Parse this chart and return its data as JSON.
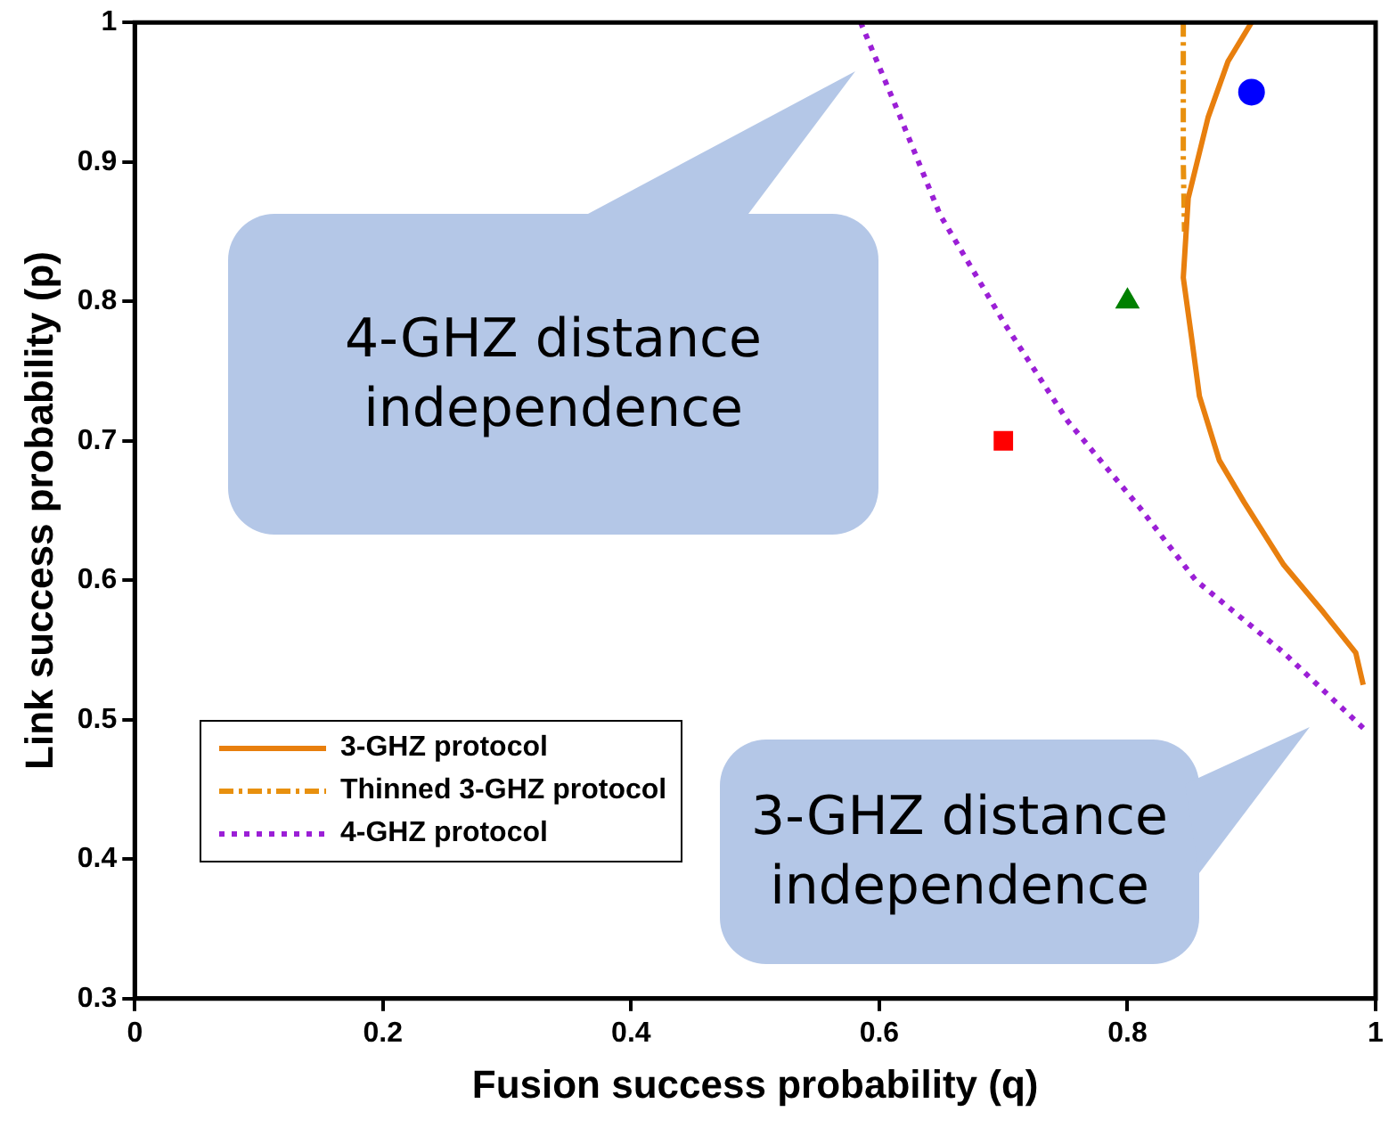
{
  "chart_data": {
    "type": "line",
    "xlabel": "Fusion success probability (q)",
    "ylabel": "Link success probability (p)",
    "xlim": [
      0,
      1
    ],
    "ylim": [
      0.3,
      1
    ],
    "xticks": [
      0,
      0.2,
      0.4,
      0.6,
      0.8,
      1
    ],
    "yticks": [
      0.3,
      0.4,
      0.5,
      0.6,
      0.7,
      0.8,
      0.9,
      1
    ],
    "legend": "bottom left",
    "annotations": [
      "4-GHZ distance independence",
      "3-GHZ distance independence"
    ],
    "series": [
      {
        "name": "3-GHZ protocol",
        "type": "line",
        "color": "#e87f0e",
        "line_style": "solid",
        "marker": "none",
        "x": [
          0.9,
          0.881,
          0.865,
          0.849,
          0.845,
          0.852,
          0.858,
          0.874,
          0.894,
          0.926,
          0.958,
          0.984,
          0.99
        ],
        "values": [
          1,
          0.972,
          0.932,
          0.874,
          0.817,
          0.772,
          0.732,
          0.686,
          0.656,
          0.611,
          0.577,
          0.548,
          0.525
        ]
      },
      {
        "name": "Thinned 3-GHZ protocol",
        "type": "line",
        "color": "#e8900e",
        "line_style": "dashdot",
        "marker": "none",
        "x": [
          0.845,
          0.845,
          0.846
        ],
        "values": [
          1,
          0.9,
          0.85
        ]
      },
      {
        "name": "4-GHZ protocol",
        "type": "line",
        "color": "#9b1fd6",
        "line_style": "dotted",
        "marker": "none",
        "x": [
          0.585,
          0.617,
          0.649,
          0.701,
          0.752,
          0.81,
          0.855,
          0.926,
          0.99
        ],
        "values": [
          1,
          0.932,
          0.862,
          0.784,
          0.714,
          0.652,
          0.6,
          0.548,
          0.494
        ]
      },
      {
        "type": "scatter",
        "color": "#0000ff",
        "marker": "circle",
        "x": [
          0.9
        ],
        "values": [
          0.95
        ]
      },
      {
        "type": "scatter",
        "color": "#008000",
        "marker": "triangle",
        "x": [
          0.8
        ],
        "values": [
          0.8
        ]
      },
      {
        "type": "scatter",
        "color": "#ff0000",
        "marker": "square",
        "x": [
          0.7
        ],
        "values": [
          0.7
        ]
      }
    ]
  }
}
